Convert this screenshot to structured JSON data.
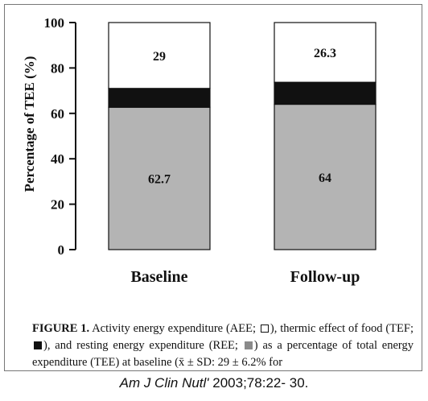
{
  "chart_data": {
    "type": "bar",
    "stacked": true,
    "categories": [
      "Baseline",
      "Follow-up"
    ],
    "series": [
      {
        "name": "REE",
        "values": [
          62.7,
          64.0
        ],
        "color": "#b4b4b4",
        "label_values": [
          "62.7",
          "64"
        ]
      },
      {
        "name": "TEF",
        "values": [
          8.3,
          9.7
        ],
        "color": "#111111",
        "label_values": [
          "",
          ""
        ]
      },
      {
        "name": "AEE",
        "values": [
          29.0,
          26.3
        ],
        "color": "#ffffff",
        "label_values": [
          "29",
          "26.3"
        ]
      }
    ],
    "ylabel": "Percentage of TEE (%)",
    "ylim": [
      0,
      100
    ],
    "yticks": [
      "0",
      "20",
      "40",
      "60",
      "80",
      "100"
    ],
    "ytick_values": [
      0,
      20,
      40,
      60,
      80,
      100
    ],
    "grid": false
  },
  "caption": {
    "label": "FIGURE 1.",
    "part1": " Activity energy expenditure (AEE;",
    "part2": "), thermic effect of food (TEF;",
    "part3": "), and resting energy expenditure (REE;",
    "part4": ") as a percentage of total energy expenditure (TEE) at baseline (x̄ ± SD: 29 ± 6.2% for",
    "swatch_icons": [
      "open-square-icon",
      "black-square-icon",
      "gray-square-icon"
    ]
  },
  "citation": {
    "journal": "Am J Clin Nutl'",
    "details": " 2003;78:22- 30."
  }
}
